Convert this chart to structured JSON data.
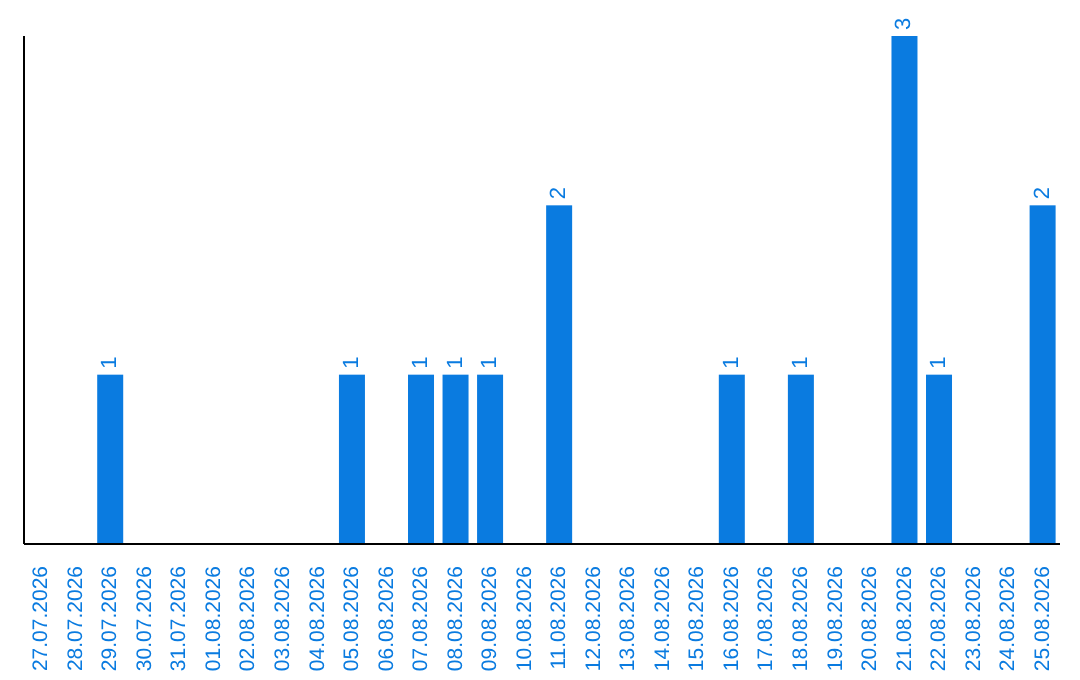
{
  "chart_data": {
    "type": "bar",
    "categories": [
      "27.07.2026",
      "28.07.2026",
      "29.07.2026",
      "30.07.2026",
      "31.07.2026",
      "01.08.2026",
      "02.08.2026",
      "03.08.2026",
      "04.08.2026",
      "05.08.2026",
      "06.08.2026",
      "07.08.2026",
      "08.08.2026",
      "09.08.2026",
      "10.08.2026",
      "11.08.2026",
      "12.08.2026",
      "13.08.2026",
      "14.08.2026",
      "15.08.2026",
      "16.08.2026",
      "17.08.2026",
      "18.08.2026",
      "19.08.2026",
      "20.08.2026",
      "21.08.2026",
      "22.08.2026",
      "23.08.2026",
      "24.08.2026",
      "25.08.2026"
    ],
    "values": [
      0,
      0,
      1,
      0,
      0,
      0,
      0,
      0,
      0,
      1,
      0,
      1,
      1,
      1,
      0,
      2,
      0,
      0,
      0,
      0,
      1,
      0,
      1,
      0,
      0,
      3,
      1,
      0,
      0,
      2
    ],
    "value_labels": [
      null,
      null,
      "1",
      null,
      null,
      null,
      null,
      null,
      null,
      "1",
      null,
      "1",
      "1",
      "1",
      null,
      "2",
      null,
      null,
      null,
      null,
      "1",
      null,
      "1",
      null,
      null,
      "3",
      "1",
      null,
      null,
      "2"
    ],
    "color": "#0a7be0",
    "ylim": [
      0,
      3
    ],
    "tick_labels": "x",
    "grid": false,
    "legend": false
  }
}
